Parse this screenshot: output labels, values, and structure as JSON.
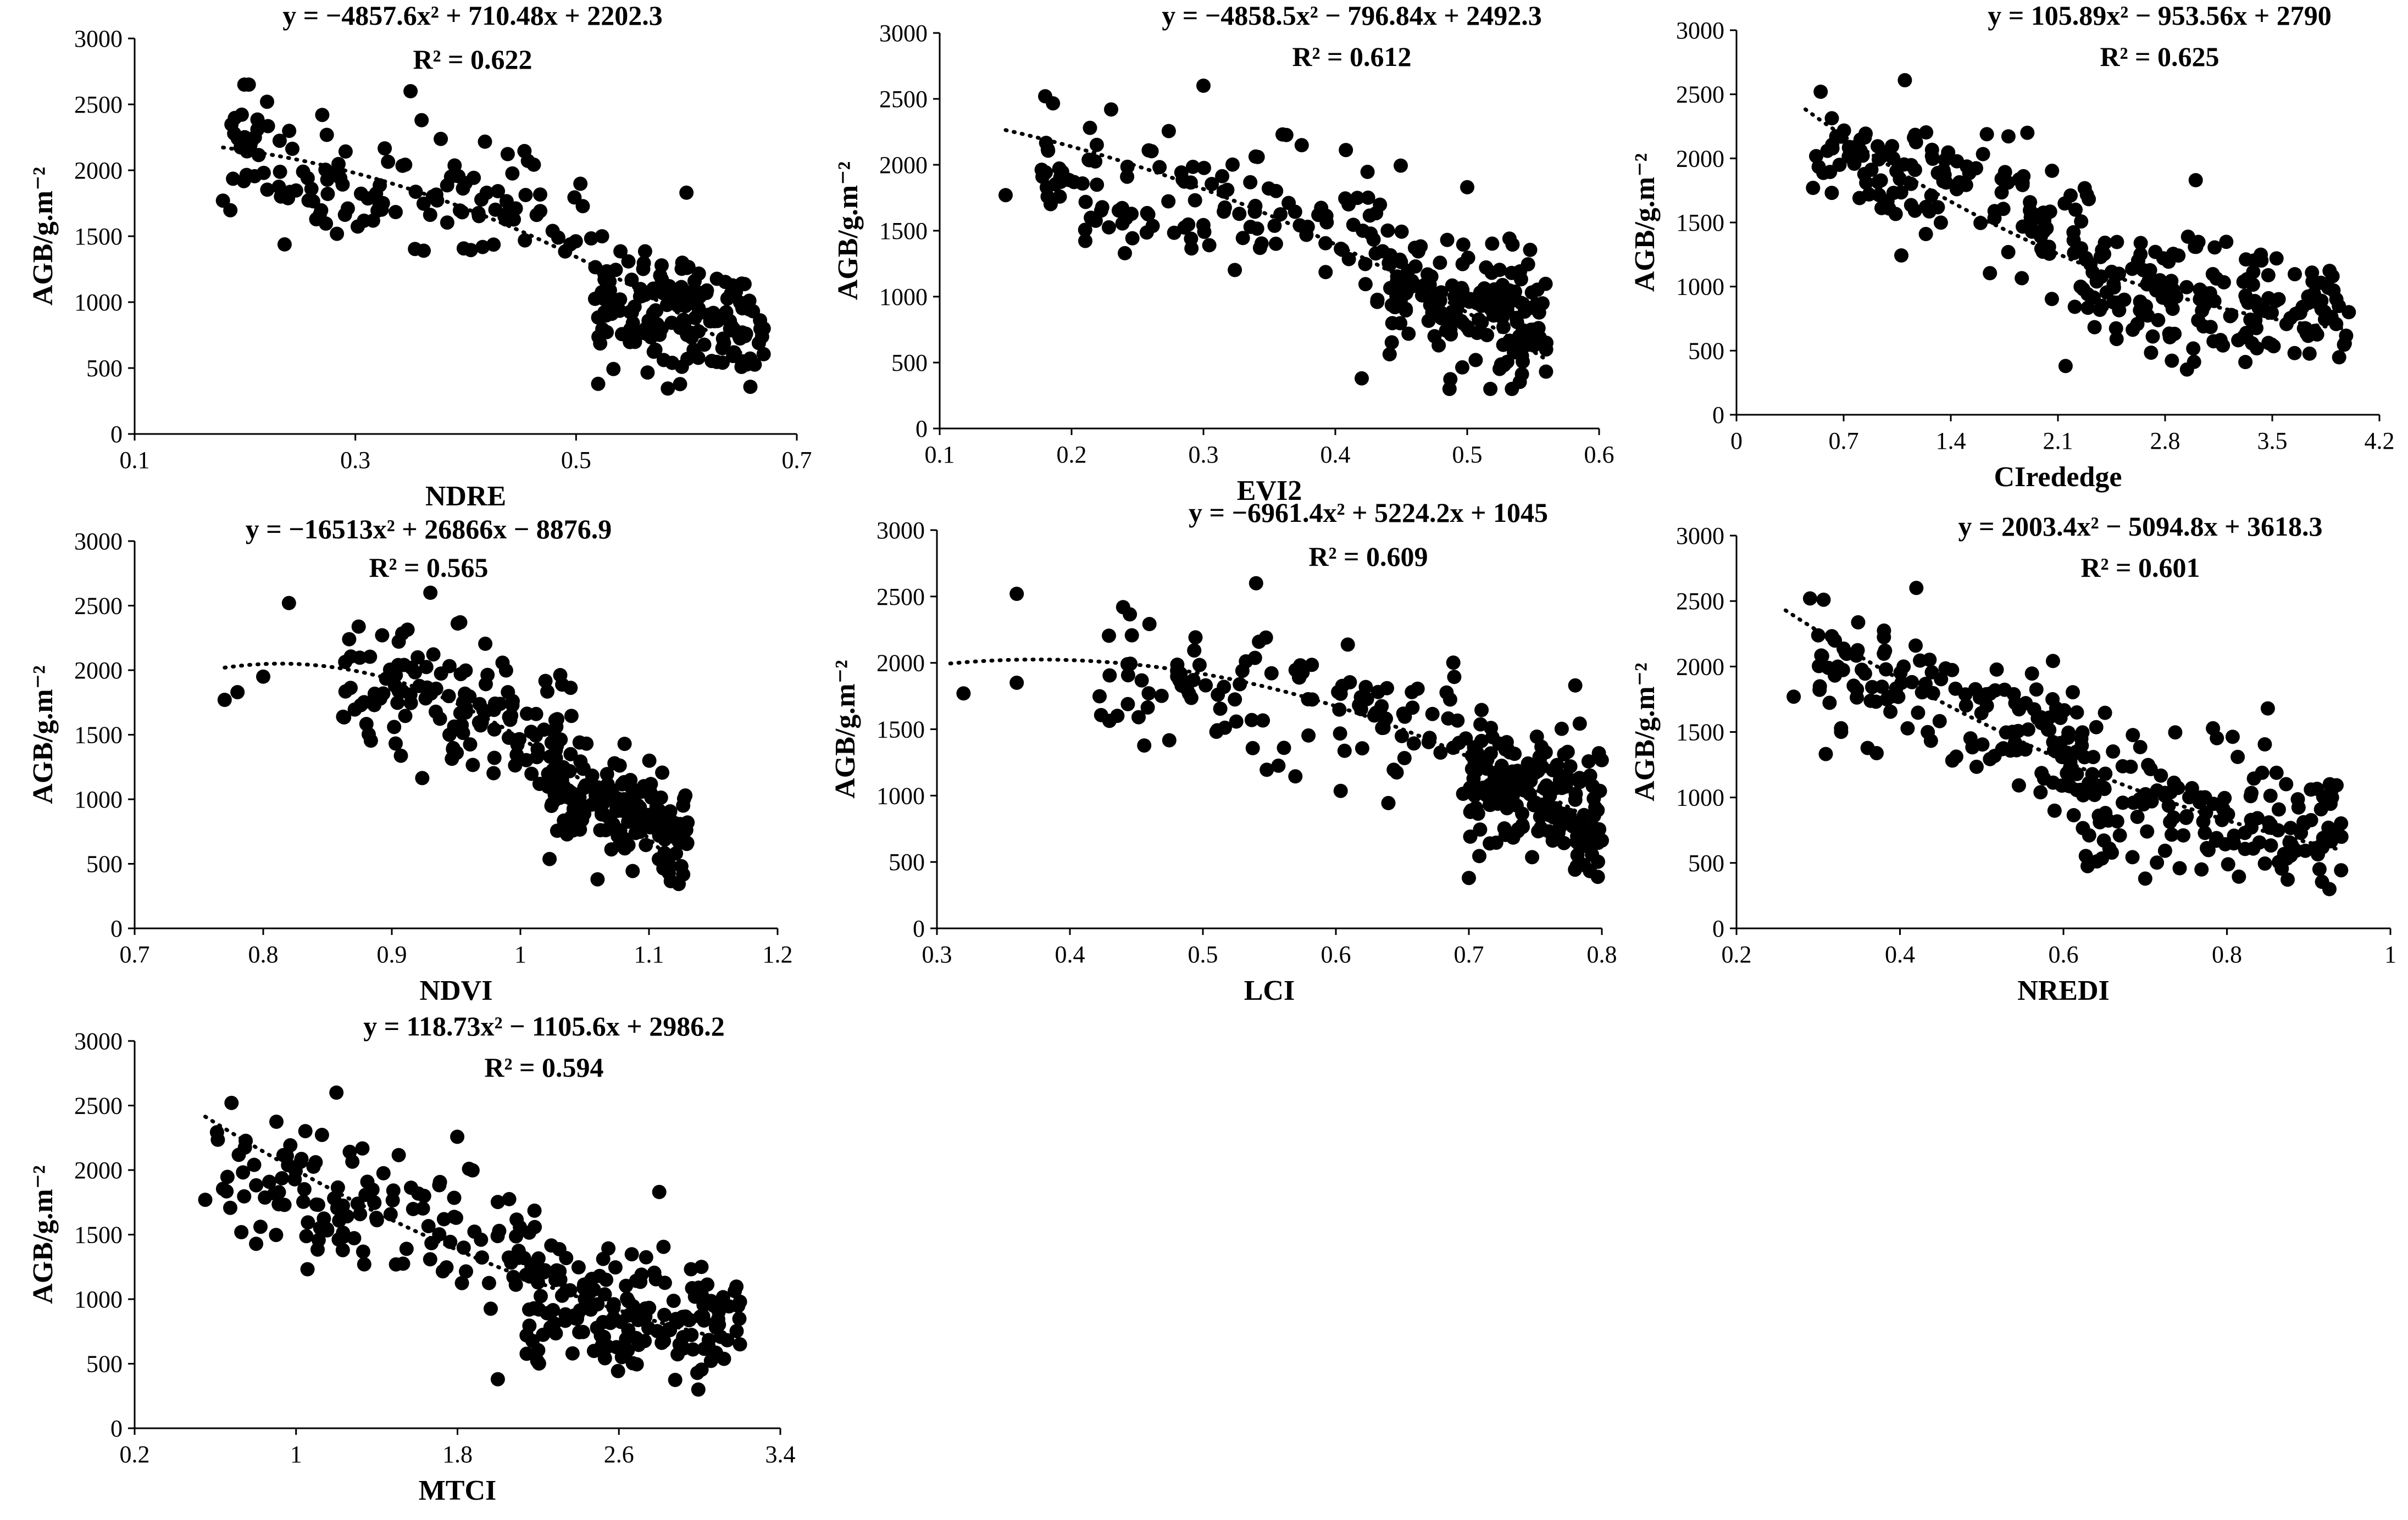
{
  "chart_data": [
    {
      "type": "scatter",
      "id": "ndre",
      "xlabel": "NDRE",
      "ylabel": "AGB/g.m⁻²",
      "equation": "y = −4857.6x² + 710.48x + 2202.3",
      "r2": "R² = 0.622",
      "xlim": [
        0.1,
        0.7
      ],
      "ylim": [
        0,
        3000
      ],
      "xticks": [
        "0.1",
        "0.3",
        "0.5",
        "0.7"
      ],
      "yticks": [
        "0",
        "500",
        "1000",
        "1500",
        "2000",
        "2500",
        "3000"
      ],
      "trend": {
        "coeffs": [
          -4857.6,
          710.48,
          2202.3
        ],
        "x_range": [
          0.18,
          0.66
        ]
      },
      "point_cloud": {
        "seed": 11,
        "groups": [
          {
            "n": 130,
            "x": [
              0.18,
              0.52
            ],
            "y_mean_end": [
              2150,
              1500
            ],
            "sd": 240
          },
          {
            "n": 170,
            "x": [
              0.52,
              0.67
            ],
            "y_mean_end": [
              1050,
              760
            ],
            "sd": 230
          }
        ]
      },
      "marked_points": [
        [
          0.18,
          1770
        ],
        [
          0.22,
          2520
        ],
        [
          0.27,
          2420
        ],
        [
          0.35,
          2600
        ],
        [
          0.36,
          2380
        ],
        [
          0.52,
          380
        ],
        [
          0.6,
          1830
        ],
        [
          0.67,
          800
        ]
      ]
    },
    {
      "type": "scatter",
      "id": "evi2",
      "xlabel": "EVI2",
      "ylabel": "AGB/g.m⁻²",
      "equation": "y = −4858.5x² − 796.84x + 2492.3",
      "r2": "R² = 0.612",
      "xlim": [
        0.1,
        0.6
      ],
      "ylim": [
        0,
        3000
      ],
      "xticks": [
        "0.1",
        "0.2",
        "0.3",
        "0.4",
        "0.5",
        "0.6"
      ],
      "yticks": [
        "0",
        "500",
        "1000",
        "1500",
        "2000",
        "2500",
        "3000"
      ],
      "trend": {
        "coeffs": [
          -4858.5,
          -796.84,
          2492.3
        ],
        "x_range": [
          0.15,
          0.56
        ]
      },
      "point_cloud": {
        "seed": 23,
        "groups": [
          {
            "n": 130,
            "x": [
              0.17,
              0.45
            ],
            "y_mean_end": [
              2000,
              1450
            ],
            "sd": 240
          },
          {
            "n": 170,
            "x": [
              0.44,
              0.56
            ],
            "y_mean_end": [
              1050,
              780
            ],
            "sd": 230
          }
        ]
      },
      "marked_points": [
        [
          0.15,
          1770
        ],
        [
          0.18,
          2520
        ],
        [
          0.23,
          2420
        ],
        [
          0.3,
          2600
        ],
        [
          0.36,
          2230
        ],
        [
          0.42,
          380
        ],
        [
          0.5,
          1830
        ],
        [
          0.56,
          650
        ]
      ]
    },
    {
      "type": "scatter",
      "id": "cirededge",
      "xlabel": "CIrededge",
      "ylabel": "AGB/g.m⁻²",
      "equation": "y = 105.89x² − 953.56x + 2790",
      "r2": "R² = 0.625",
      "xlim": [
        0,
        4.2
      ],
      "ylim": [
        0,
        3000
      ],
      "xticks": [
        "0",
        "0.7",
        "1.4",
        "2.1",
        "2.8",
        "3.5",
        "4.2"
      ],
      "yticks": [
        "0",
        "500",
        "1000",
        "1500",
        "2000",
        "2500",
        "3000"
      ],
      "trend": {
        "coeffs": [
          105.89,
          -953.56,
          2790
        ],
        "x_range": [
          0.45,
          3.95
        ]
      },
      "point_cloud": {
        "seed": 37,
        "groups": [
          {
            "n": 130,
            "x": [
              0.5,
              2.3
            ],
            "y_mean_end": [
              2050,
              1400
            ],
            "sd": 240
          },
          {
            "n": 170,
            "x": [
              2.2,
              4.0
            ],
            "y_mean_end": [
              1000,
              760
            ],
            "sd": 230
          }
        ]
      },
      "marked_points": [
        [
          0.5,
          1770
        ],
        [
          0.55,
          2520
        ],
        [
          1.1,
          2610
        ],
        [
          1.9,
          2200
        ],
        [
          2.15,
          380
        ],
        [
          3.0,
          1830
        ],
        [
          3.9,
          970
        ],
        [
          4.0,
          800
        ]
      ]
    },
    {
      "type": "scatter",
      "id": "ndvi",
      "xlabel": "NDVI",
      "ylabel": "AGB/g.m⁻²",
      "equation": "y = −16513x² + 26866x − 8876.9",
      "r2": "R² = 0.565",
      "xlim": [
        0.7,
        1.2
      ],
      "ylim": [
        0,
        3000
      ],
      "xticks": [
        "0.7",
        "0.8",
        "0.9",
        "1",
        "1.1",
        "1.2"
      ],
      "yticks": [
        "0",
        "500",
        "1000",
        "1500",
        "2000",
        "2500",
        "3000"
      ],
      "trend": {
        "coeffs": [
          -16513,
          26866,
          -8876.9
        ],
        "x_range": [
          0.77,
          1.13
        ]
      },
      "point_cloud": {
        "seed": 41,
        "groups": [
          {
            "n": 130,
            "x": [
              0.86,
              1.04
            ],
            "y_mean_end": [
              1950,
              1450
            ],
            "sd": 260
          },
          {
            "n": 170,
            "x": [
              1.02,
              1.13
            ],
            "y_mean_end": [
              1100,
              700
            ],
            "sd": 220
          }
        ]
      },
      "marked_points": [
        [
          0.77,
          1770
        ],
        [
          0.78,
          1830
        ],
        [
          0.8,
          1950
        ],
        [
          0.82,
          2520
        ],
        [
          0.93,
          2600
        ],
        [
          1.06,
          380
        ],
        [
          1.13,
          820
        ]
      ]
    },
    {
      "type": "scatter",
      "id": "lci",
      "xlabel": "LCI",
      "ylabel": "AGB/g.m⁻²",
      "equation": "y = −6961.4x² + 5224.2x + 1045",
      "r2": "R² = 0.609",
      "xlim": [
        0.3,
        0.8
      ],
      "ylim": [
        0,
        3000
      ],
      "xticks": [
        "0.3",
        "0.4",
        "0.5",
        "0.6",
        "0.7",
        "0.8"
      ],
      "yticks": [
        "0",
        "500",
        "1000",
        "1500",
        "2000",
        "2500",
        "3000"
      ],
      "trend": {
        "coeffs": [
          -6961.4,
          5224.2,
          1045
        ],
        "x_range": [
          0.31,
          0.8
        ]
      },
      "point_cloud": {
        "seed": 53,
        "groups": [
          {
            "n": 120,
            "x": [
              0.42,
              0.71
            ],
            "y_mean_end": [
              1900,
              1500
            ],
            "sd": 230
          },
          {
            "n": 180,
            "x": [
              0.7,
              0.8
            ],
            "y_mean_end": [
              1150,
              800
            ],
            "sd": 250
          }
        ]
      },
      "marked_points": [
        [
          0.32,
          1770
        ],
        [
          0.36,
          2520
        ],
        [
          0.36,
          1850
        ],
        [
          0.44,
          2420
        ],
        [
          0.54,
          2600
        ],
        [
          0.7,
          380
        ],
        [
          0.78,
          1830
        ]
      ]
    },
    {
      "type": "scatter",
      "id": "nredi",
      "xlabel": "NREDI",
      "ylabel": "AGB/g.m⁻²",
      "equation": "y = 2003.4x² − 5094.8x + 3618.3",
      "r2": "R² = 0.601",
      "xlim": [
        0.2,
        1
      ],
      "ylim": [
        0,
        3000
      ],
      "xticks": [
        "0.2",
        "0.4",
        "0.6",
        "0.8",
        "1"
      ],
      "yticks": [
        "0",
        "500",
        "1000",
        "1500",
        "2000",
        "2500",
        "3000"
      ],
      "trend": {
        "coeffs": [
          2003.4,
          -5094.8,
          3618.3
        ],
        "x_range": [
          0.26,
          0.94
        ]
      },
      "point_cloud": {
        "seed": 67,
        "groups": [
          {
            "n": 130,
            "x": [
              0.3,
              0.62
            ],
            "y_mean_end": [
              2050,
              1350
            ],
            "sd": 240
          },
          {
            "n": 170,
            "x": [
              0.6,
              0.94
            ],
            "y_mean_end": [
              1050,
              720
            ],
            "sd": 230
          }
        ]
      },
      "marked_points": [
        [
          0.27,
          1770
        ],
        [
          0.29,
          2520
        ],
        [
          0.42,
          2600
        ],
        [
          0.7,
          380
        ],
        [
          0.85,
          1680
        ],
        [
          0.94,
          700
        ]
      ]
    },
    {
      "type": "scatter",
      "id": "mtci",
      "xlabel": "MTCI",
      "ylabel": "AGB/g.m⁻²",
      "equation": "y = 118.73x² − 1105.6x + 2986.2",
      "r2": "R² = 0.594",
      "xlim": [
        0.2,
        3.4
      ],
      "ylim": [
        0,
        3000
      ],
      "xticks": [
        "0.2",
        "1",
        "1.8",
        "2.6",
        "3.4"
      ],
      "yticks": [
        "0",
        "500",
        "1000",
        "1500",
        "2000",
        "2500",
        "3000"
      ],
      "trend": {
        "coeffs": [
          118.73,
          -1105.6,
          2986.2
        ],
        "x_range": [
          0.55,
          3.2
        ]
      },
      "point_cloud": {
        "seed": 79,
        "groups": [
          {
            "n": 130,
            "x": [
              0.6,
              2.2
            ],
            "y_mean_end": [
              2000,
              1350
            ],
            "sd": 240
          },
          {
            "n": 170,
            "x": [
              2.1,
              3.2
            ],
            "y_mean_end": [
              1000,
              800
            ],
            "sd": 230
          }
        ]
      },
      "marked_points": [
        [
          0.55,
          1770
        ],
        [
          0.68,
          2520
        ],
        [
          1.2,
          2600
        ],
        [
          2.0,
          380
        ],
        [
          2.8,
          1830
        ],
        [
          3.2,
          980
        ],
        [
          3.2,
          650
        ]
      ]
    }
  ]
}
